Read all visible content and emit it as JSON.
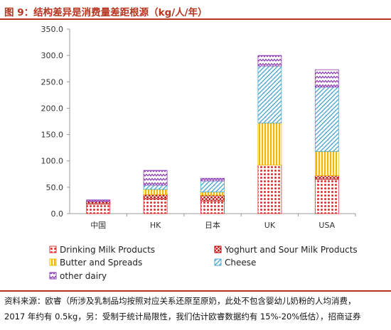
{
  "header": {
    "title": "图 9：结构差异是消费量差距根源（kg/人/年）"
  },
  "source": {
    "line1": "资料来源：欧睿（所涉及乳制品均按照对应关系还原至原奶，此处不包含婴幼儿奶粉的人均消费，",
    "line2": "2017 年约有 0.5kg，另：受制于统计局限性，我们估计欧睿数据约有 15%-20%低估），招商证券"
  },
  "colors": {
    "drinking_milk": "#e03030",
    "yoghurt": "#c00000",
    "butter": "#f2b800",
    "cheese": "#4fa9cf",
    "other_dairy": "#8a3cb4"
  },
  "chart_data": {
    "type": "bar",
    "stacked": true,
    "categories": [
      "中国",
      "HK",
      "日本",
      "UK",
      "USA"
    ],
    "ylim": [
      0,
      350
    ],
    "yticks": [
      "0.0",
      "50.0",
      "100.0",
      "150.0",
      "200.0",
      "250.0",
      "300.0",
      "350.0"
    ],
    "grid": false,
    "legend_position": "bottom",
    "series": [
      {
        "name": "Drinking Milk Products",
        "color_key": "drinking_milk",
        "pattern": "dots",
        "values": [
          18,
          28,
          24,
          92,
          65
        ]
      },
      {
        "name": "Yoghurt and Sour Milk Products",
        "color_key": "yoghurt",
        "pattern": "cross",
        "values": [
          5,
          8,
          11,
          0,
          7
        ]
      },
      {
        "name": "Butter and Spreads",
        "color_key": "butter",
        "pattern": "vlines",
        "values": [
          0,
          10,
          6,
          80,
          46
        ]
      },
      {
        "name": "Cheese",
        "color_key": "cheese",
        "pattern": "diag",
        "values": [
          0,
          8,
          21,
          108,
          122
        ]
      },
      {
        "name": "other dairy",
        "color_key": "other_dairy",
        "pattern": "zigzag",
        "values": [
          3,
          28,
          5,
          20,
          33
        ]
      }
    ]
  }
}
